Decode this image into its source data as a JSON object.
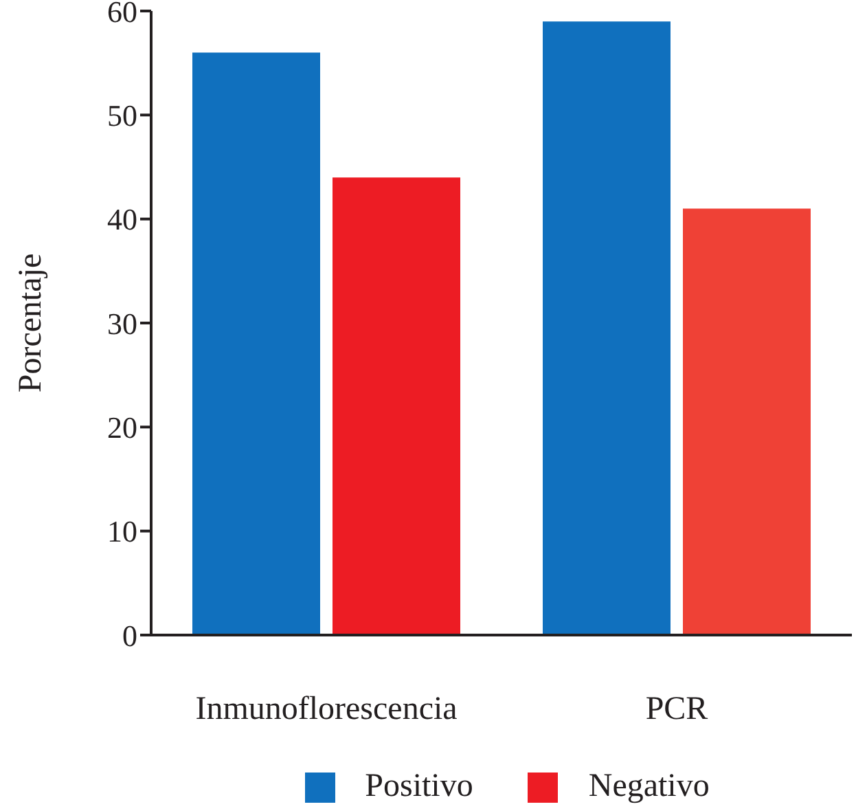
{
  "chart_data": {
    "type": "bar",
    "ylabel": "Porcentaje",
    "categories": [
      "Inmunoflorescencia",
      "PCR"
    ],
    "series": [
      {
        "name": "Positivo",
        "color": "#1070be",
        "values": [
          56,
          59
        ]
      },
      {
        "name": "Negativo",
        "color": "#ed1c24",
        "colors": [
          "#ed1c24",
          "#ef4136"
        ],
        "values": [
          44,
          41
        ]
      }
    ],
    "ylim": [
      0,
      60
    ],
    "yticks": [
      0,
      10,
      20,
      30,
      40,
      50,
      60
    ],
    "grid": false,
    "legend": "bottom"
  }
}
